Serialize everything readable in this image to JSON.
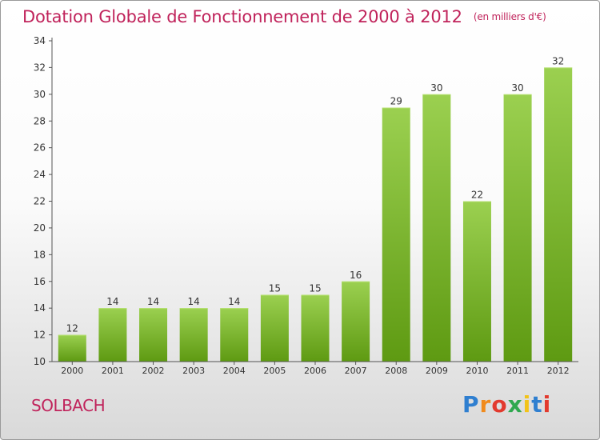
{
  "header": {
    "title": "Dotation Globale de Fonctionnement de 2000 à 2012",
    "unit_note": "(en milliers d'€)"
  },
  "footer": {
    "place": "SOLBACH",
    "logo": "Proxiti"
  },
  "colors": {
    "title": "#c0235b",
    "bar_top": "#9bd050",
    "bar_bottom": "#5e9a12",
    "axis": "#555555",
    "grid": "#cccccc"
  },
  "chart_data": {
    "type": "bar",
    "title": "Dotation Globale de Fonctionnement de 2000 à 2012",
    "xlabel": "",
    "ylabel": "",
    "categories": [
      "2000",
      "2001",
      "2002",
      "2003",
      "2004",
      "2005",
      "2006",
      "2007",
      "2008",
      "2009",
      "2010",
      "2011",
      "2012"
    ],
    "values": [
      12,
      14,
      14,
      14,
      14,
      15,
      15,
      16,
      29,
      30,
      22,
      30,
      32
    ],
    "ylim": [
      10,
      34
    ],
    "yticks": [
      10,
      12,
      14,
      16,
      18,
      20,
      22,
      24,
      26,
      28,
      30,
      32,
      34
    ],
    "data_labels": true,
    "legend": "none",
    "grid": false
  }
}
